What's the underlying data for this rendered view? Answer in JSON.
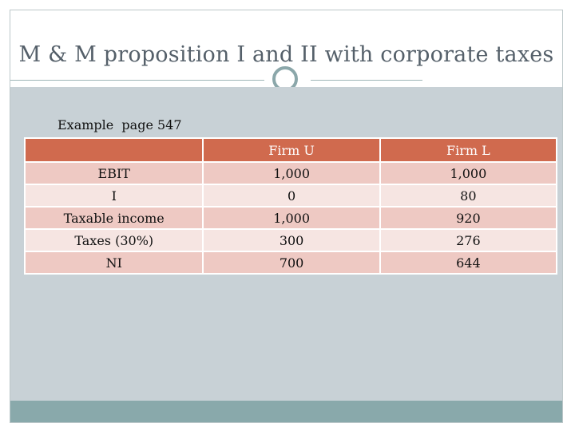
{
  "slide": {
    "title": "M & M proposition I and II with corporate taxes",
    "subtitle": "Example  page 547"
  },
  "table": {
    "headers": [
      "",
      "Firm U",
      "Firm L"
    ],
    "rows": [
      [
        "EBIT",
        "1,000",
        "1,000"
      ],
      [
        "I",
        "0",
        "80"
      ],
      [
        "Taxable income",
        "1,000",
        "920"
      ],
      [
        "Taxes (30%)",
        "300",
        "276"
      ],
      [
        "NI",
        "700",
        "644"
      ]
    ]
  },
  "colors": {
    "header_bg": "#d06a4e",
    "row_dark": "#eec9c3",
    "row_light": "#f6e5e2",
    "content_bg": "#c8d1d6",
    "footer_bg": "#89a9ab",
    "accent": "#8ba7aa"
  }
}
